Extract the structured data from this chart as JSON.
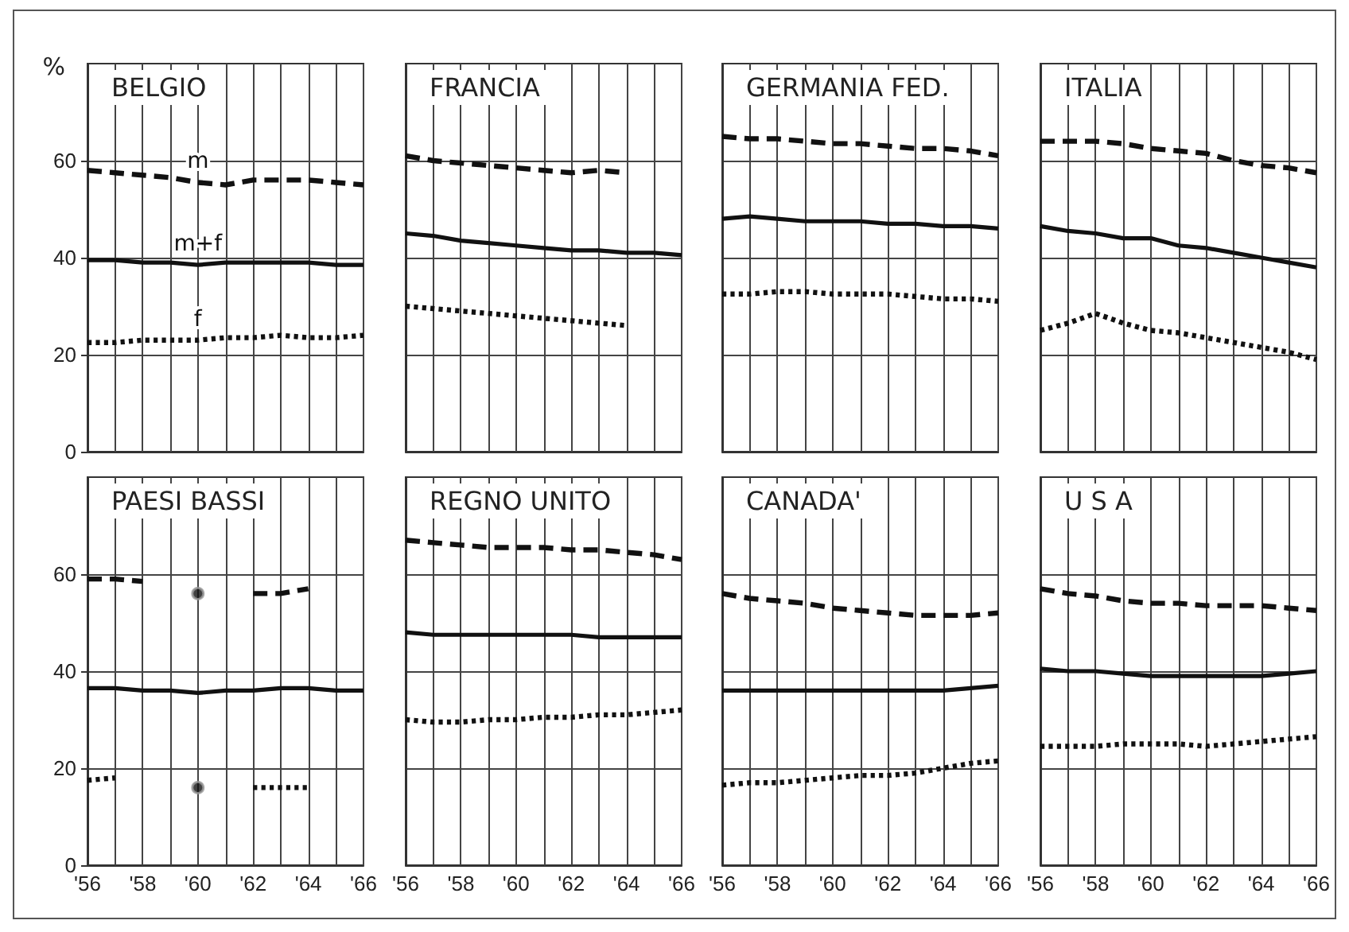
{
  "chart_data": [
    {
      "type": "line",
      "title": "BELGIO",
      "ylabel": "%",
      "x": [
        1956,
        1957,
        1958,
        1959,
        1960,
        1961,
        1962,
        1963,
        1964,
        1965,
        1966
      ],
      "series": [
        {
          "name": "m",
          "color": "#111111",
          "line_style": "dashed",
          "values": [
            58,
            57.5,
            57,
            56.5,
            55.5,
            55,
            56,
            56,
            56,
            55.5,
            55
          ]
        },
        {
          "name": "m+f",
          "color": "#111111",
          "line_style": "solid",
          "values": [
            39.5,
            39.5,
            39,
            39,
            38.5,
            39,
            39,
            39,
            39,
            38.5,
            38.5
          ]
        },
        {
          "name": "f",
          "color": "#111111",
          "line_style": "dotted",
          "values": [
            22.5,
            22.5,
            23,
            23,
            23,
            23.5,
            23.5,
            24,
            23.5,
            23.5,
            24
          ]
        }
      ],
      "xlim": [
        1956,
        1966
      ],
      "xticks": [
        {
          "value": 1956,
          "label": null
        },
        {
          "value": 1957,
          "label": null
        },
        {
          "value": 1958,
          "label": null
        },
        {
          "value": 1959,
          "label": null
        },
        {
          "value": 1960,
          "label": null
        },
        {
          "value": 1961,
          "label": null
        },
        {
          "value": 1962,
          "label": null
        },
        {
          "value": 1963,
          "label": null
        },
        {
          "value": 1964,
          "label": null
        },
        {
          "value": 1965,
          "label": null
        },
        {
          "value": 1966,
          "label": null
        }
      ],
      "ylim": [
        0,
        80
      ],
      "yticks": [
        0,
        20,
        40,
        60
      ],
      "grid": true,
      "tick_labels": "y"
    },
    {
      "type": "line",
      "title": "FRANCIA",
      "x": [
        1956,
        1957,
        1958,
        1959,
        1960,
        1961,
        1962,
        1963,
        1964,
        1965,
        1966
      ],
      "series": [
        {
          "color": "#111111",
          "line_style": "dashed",
          "values": [
            61,
            60,
            59.5,
            59,
            58.5,
            58,
            57.5,
            58,
            57.5,
            null,
            null
          ]
        },
        {
          "color": "#111111",
          "line_style": "solid",
          "values": [
            45,
            44.5,
            43.5,
            43,
            42.5,
            42,
            41.5,
            41.5,
            41,
            41,
            40.5
          ]
        },
        {
          "color": "#111111",
          "line_style": "dotted",
          "values": [
            30,
            29.5,
            29,
            28.5,
            28,
            27.5,
            27,
            26.5,
            26,
            null,
            null
          ]
        }
      ],
      "xlim": [
        1956,
        1966
      ],
      "xticks": [
        {
          "value": 1956,
          "label": null
        },
        {
          "value": 1957,
          "label": null
        },
        {
          "value": 1958,
          "label": null
        },
        {
          "value": 1959,
          "label": null
        },
        {
          "value": 1960,
          "label": null
        },
        {
          "value": 1961,
          "label": null
        },
        {
          "value": 1962,
          "label": null
        },
        {
          "value": 1963,
          "label": null
        },
        {
          "value": 1964,
          "label": null
        },
        {
          "value": 1965,
          "label": null
        },
        {
          "value": 1966,
          "label": null
        }
      ],
      "ylim": [
        0,
        80
      ],
      "yticks": [
        0,
        20,
        40,
        60
      ],
      "grid": true,
      "tick_labels": false
    },
    {
      "type": "line",
      "title": "GERMANIA FED.",
      "x": [
        1956,
        1957,
        1958,
        1959,
        1960,
        1961,
        1962,
        1963,
        1964,
        1965,
        1966
      ],
      "series": [
        {
          "color": "#111111",
          "line_style": "dashed",
          "values": [
            65,
            64.5,
            64.5,
            64,
            63.5,
            63.5,
            63,
            62.5,
            62.5,
            62,
            61
          ]
        },
        {
          "color": "#111111",
          "line_style": "solid",
          "values": [
            48,
            48.5,
            48,
            47.5,
            47.5,
            47.5,
            47,
            47,
            46.5,
            46.5,
            46
          ]
        },
        {
          "color": "#111111",
          "line_style": "dotted",
          "values": [
            32.5,
            32.5,
            33,
            33,
            32.5,
            32.5,
            32.5,
            32,
            31.5,
            31.5,
            31
          ]
        }
      ],
      "xlim": [
        1956,
        1966
      ],
      "xticks": [
        {
          "value": 1956,
          "label": null
        },
        {
          "value": 1957,
          "label": null
        },
        {
          "value": 1958,
          "label": null
        },
        {
          "value": 1959,
          "label": null
        },
        {
          "value": 1960,
          "label": null
        },
        {
          "value": 1961,
          "label": null
        },
        {
          "value": 1962,
          "label": null
        },
        {
          "value": 1963,
          "label": null
        },
        {
          "value": 1964,
          "label": null
        },
        {
          "value": 1965,
          "label": null
        },
        {
          "value": 1966,
          "label": null
        }
      ],
      "ylim": [
        0,
        80
      ],
      "yticks": [
        0,
        20,
        40,
        60
      ],
      "grid": true,
      "tick_labels": false
    },
    {
      "type": "line",
      "title": "ITALIA",
      "x": [
        1956,
        1957,
        1958,
        1959,
        1960,
        1961,
        1962,
        1963,
        1964,
        1965,
        1966
      ],
      "series": [
        {
          "color": "#111111",
          "line_style": "dashed",
          "values": [
            64,
            64,
            64,
            63.5,
            62.5,
            62,
            61.5,
            60,
            59,
            58.5,
            57.5
          ]
        },
        {
          "color": "#111111",
          "line_style": "solid",
          "values": [
            46.5,
            45.5,
            45,
            44,
            44,
            42.5,
            42,
            41,
            40,
            39,
            38
          ]
        },
        {
          "color": "#111111",
          "line_style": "dotted",
          "values": [
            25,
            26.5,
            28.5,
            26.5,
            25,
            24.5,
            23.5,
            22.5,
            21.5,
            20.5,
            19
          ]
        }
      ],
      "xlim": [
        1956,
        1966
      ],
      "xticks": [
        {
          "value": 1956,
          "label": null
        },
        {
          "value": 1957,
          "label": null
        },
        {
          "value": 1958,
          "label": null
        },
        {
          "value": 1959,
          "label": null
        },
        {
          "value": 1960,
          "label": null
        },
        {
          "value": 1961,
          "label": null
        },
        {
          "value": 1962,
          "label": null
        },
        {
          "value": 1963,
          "label": null
        },
        {
          "value": 1964,
          "label": null
        },
        {
          "value": 1965,
          "label": null
        },
        {
          "value": 1966,
          "label": null
        }
      ],
      "ylim": [
        0,
        80
      ],
      "yticks": [
        0,
        20,
        40,
        60
      ],
      "grid": true,
      "tick_labels": false
    },
    {
      "type": "line",
      "title": "PAESI BASSI",
      "x": [
        1956,
        1957,
        1958,
        1959,
        1960,
        1961,
        1962,
        1963,
        1964,
        1965,
        1966
      ],
      "series": [
        {
          "color": "#111111",
          "line_style": "dashed",
          "values": [
            59,
            59,
            58.5,
            null,
            null,
            null,
            56,
            56,
            57,
            null,
            null
          ]
        },
        {
          "type": "scatter",
          "color": "#111111",
          "marker": "circle",
          "x": [
            1960
          ],
          "values": [
            56
          ]
        },
        {
          "color": "#111111",
          "line_style": "solid",
          "values": [
            36.5,
            36.5,
            36,
            36,
            35.5,
            36,
            36,
            36.5,
            36.5,
            36,
            36
          ]
        },
        {
          "color": "#111111",
          "line_style": "dotted",
          "values": [
            17.5,
            18,
            null,
            null,
            null,
            null,
            16,
            16,
            16,
            null,
            null
          ]
        },
        {
          "type": "scatter",
          "color": "#111111",
          "marker": "circle",
          "x": [
            1960
          ],
          "values": [
            16
          ]
        }
      ],
      "xlim": [
        1956,
        1966
      ],
      "xticks": [
        {
          "value": 1956,
          "label": "'56"
        },
        {
          "value": 1957,
          "label": null
        },
        {
          "value": 1958,
          "label": "'58"
        },
        {
          "value": 1959,
          "label": null
        },
        {
          "value": 1960,
          "label": "'60"
        },
        {
          "value": 1961,
          "label": null
        },
        {
          "value": 1962,
          "label": "'62"
        },
        {
          "value": 1963,
          "label": null
        },
        {
          "value": 1964,
          "label": "'64"
        },
        {
          "value": 1965,
          "label": null
        },
        {
          "value": 1966,
          "label": "'66"
        }
      ],
      "ylim": [
        0,
        80
      ],
      "yticks": [
        0,
        20,
        40,
        60
      ],
      "grid": true
    },
    {
      "type": "line",
      "title": "REGNO UNITO",
      "x": [
        1956,
        1957,
        1958,
        1959,
        1960,
        1961,
        1962,
        1963,
        1964,
        1965,
        1966
      ],
      "series": [
        {
          "color": "#111111",
          "line_style": "dashed",
          "values": [
            67,
            66.5,
            66,
            65.5,
            65.5,
            65.5,
            65,
            65,
            64.5,
            64,
            63
          ]
        },
        {
          "color": "#111111",
          "line_style": "solid",
          "values": [
            48,
            47.5,
            47.5,
            47.5,
            47.5,
            47.5,
            47.5,
            47,
            47,
            47,
            47
          ]
        },
        {
          "color": "#111111",
          "line_style": "dotted",
          "values": [
            30,
            29.5,
            29.5,
            30,
            30,
            30.5,
            30.5,
            31,
            31,
            31.5,
            32
          ]
        }
      ],
      "xlim": [
        1956,
        1966
      ],
      "xticks": [
        {
          "value": 1956,
          "label": "'56"
        },
        {
          "value": 1957,
          "label": null
        },
        {
          "value": 1958,
          "label": "'58"
        },
        {
          "value": 1959,
          "label": null
        },
        {
          "value": 1960,
          "label": "'60"
        },
        {
          "value": 1961,
          "label": null
        },
        {
          "value": 1962,
          "label": "'62"
        },
        {
          "value": 1963,
          "label": null
        },
        {
          "value": 1964,
          "label": "'64"
        },
        {
          "value": 1965,
          "label": null
        },
        {
          "value": 1966,
          "label": "'66"
        }
      ],
      "ylim": [
        0,
        80
      ],
      "yticks": [
        0,
        20,
        40,
        60
      ],
      "grid": true,
      "tick_labels": "x"
    },
    {
      "type": "line",
      "title": "CANADA'",
      "x": [
        1956,
        1957,
        1958,
        1959,
        1960,
        1961,
        1962,
        1963,
        1964,
        1965,
        1966
      ],
      "series": [
        {
          "color": "#111111",
          "line_style": "dashed",
          "values": [
            56,
            55,
            54.5,
            54,
            53,
            52.5,
            52,
            51.5,
            51.5,
            51.5,
            52
          ]
        },
        {
          "color": "#111111",
          "line_style": "solid",
          "values": [
            36,
            36,
            36,
            36,
            36,
            36,
            36,
            36,
            36,
            36.5,
            37
          ]
        },
        {
          "color": "#111111",
          "line_style": "dotted",
          "values": [
            16.5,
            17,
            17,
            17.5,
            18,
            18.5,
            18.5,
            19,
            20,
            21,
            21.5
          ]
        }
      ],
      "xlim": [
        1956,
        1966
      ],
      "xticks": [
        {
          "value": 1956,
          "label": "'56"
        },
        {
          "value": 1957,
          "label": null
        },
        {
          "value": 1958,
          "label": "'58"
        },
        {
          "value": 1959,
          "label": null
        },
        {
          "value": 1960,
          "label": "'60"
        },
        {
          "value": 1961,
          "label": null
        },
        {
          "value": 1962,
          "label": "'62"
        },
        {
          "value": 1963,
          "label": null
        },
        {
          "value": 1964,
          "label": "'64"
        },
        {
          "value": 1965,
          "label": null
        },
        {
          "value": 1966,
          "label": "'66"
        }
      ],
      "ylim": [
        0,
        80
      ],
      "yticks": [
        0,
        20,
        40,
        60
      ],
      "grid": true,
      "tick_labels": "x"
    },
    {
      "type": "line",
      "title": "U S A",
      "x": [
        1956,
        1957,
        1958,
        1959,
        1960,
        1961,
        1962,
        1963,
        1964,
        1965,
        1966
      ],
      "series": [
        {
          "color": "#111111",
          "line_style": "dashed",
          "values": [
            57,
            56,
            55.5,
            54.5,
            54,
            54,
            53.5,
            53.5,
            53.5,
            53,
            52.5
          ]
        },
        {
          "color": "#111111",
          "line_style": "solid",
          "values": [
            40.5,
            40,
            40,
            39.5,
            39,
            39,
            39,
            39,
            39,
            39.5,
            40
          ]
        },
        {
          "color": "#111111",
          "line_style": "dotted",
          "values": [
            24.5,
            24.5,
            24.5,
            25,
            25,
            25,
            24.5,
            25,
            25.5,
            26,
            26.5
          ]
        }
      ],
      "xlim": [
        1956,
        1966
      ],
      "xticks": [
        {
          "value": 1956,
          "label": "'56"
        },
        {
          "value": 1957,
          "label": null
        },
        {
          "value": 1958,
          "label": "'58"
        },
        {
          "value": 1959,
          "label": null
        },
        {
          "value": 1960,
          "label": "'60"
        },
        {
          "value": 1961,
          "label": null
        },
        {
          "value": 1962,
          "label": "'62"
        },
        {
          "value": 1963,
          "label": null
        },
        {
          "value": 1964,
          "label": "'64"
        },
        {
          "value": 1965,
          "label": null
        },
        {
          "value": 1966,
          "label": "'66"
        }
      ],
      "ylim": [
        0,
        80
      ],
      "yticks": [
        0,
        20,
        40,
        60
      ],
      "grid": true,
      "tick_labels": "x"
    }
  ]
}
